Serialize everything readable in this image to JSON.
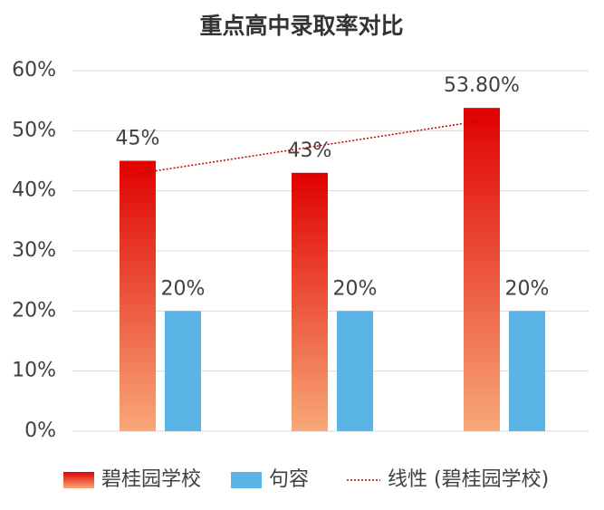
{
  "chart_data": {
    "type": "bar",
    "title": "重点高中录取率对比",
    "categories": [
      null,
      null,
      null
    ],
    "series": [
      {
        "name": "碧桂园学校",
        "color": "#e00000",
        "values": [
          45,
          43,
          53.8
        ],
        "value_labels": [
          "45%",
          "43%",
          "53.80%"
        ]
      },
      {
        "name": "句容",
        "color": "#5ab4e5",
        "values": [
          20,
          20,
          20
        ],
        "value_labels": [
          "20%",
          "20%",
          "20%"
        ]
      }
    ],
    "trendline": {
      "name": "线性 (碧桂园学校)",
      "series": 0,
      "color": "#c00000"
    },
    "ylim": [
      0,
      60
    ],
    "yticks": [
      {
        "value": 0,
        "label": "0%"
      },
      {
        "value": 10,
        "label": "10%"
      },
      {
        "value": 20,
        "label": "20%"
      },
      {
        "value": 30,
        "label": "30%"
      },
      {
        "value": 40,
        "label": "40%"
      },
      {
        "value": 50,
        "label": "50%"
      },
      {
        "value": 60,
        "label": "60%"
      }
    ],
    "grid": true
  }
}
